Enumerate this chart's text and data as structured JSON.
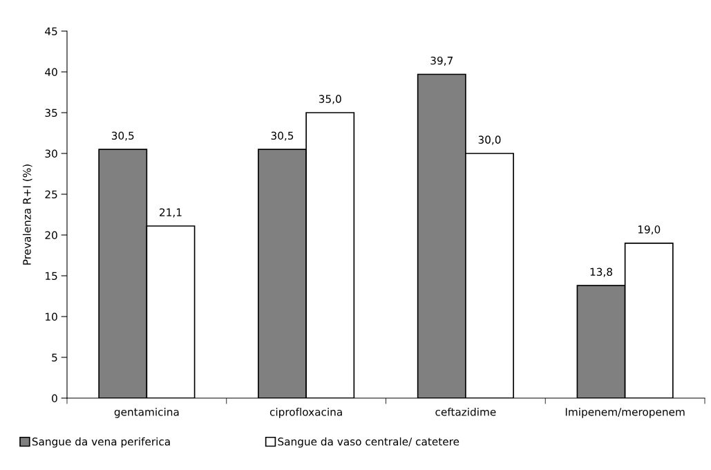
{
  "chart_data": {
    "type": "bar",
    "ylabel": "Prevalenza R+I (%)",
    "categories": [
      "gentamicina",
      "ciprofloxacina",
      "ceftazidime",
      "Imipenem/meropenem"
    ],
    "series": [
      {
        "name": "Sangue da vena periferica",
        "color": "#808080",
        "values": [
          30.5,
          30.5,
          39.7,
          13.8
        ],
        "value_labels": [
          "30,5",
          "30,5",
          "39,7",
          "13,8"
        ]
      },
      {
        "name": "Sangue da vaso centrale/ catetere",
        "color": "#ffffff",
        "values": [
          21.1,
          35.0,
          30.0,
          19.0
        ],
        "value_labels": [
          "21,1",
          "35,0",
          "30,0",
          "19,0"
        ]
      }
    ],
    "ylim": [
      0,
      45
    ],
    "yticks": [
      0,
      5,
      10,
      15,
      20,
      25,
      30,
      35,
      40,
      45
    ],
    "grid": false,
    "legend": "bottom"
  }
}
